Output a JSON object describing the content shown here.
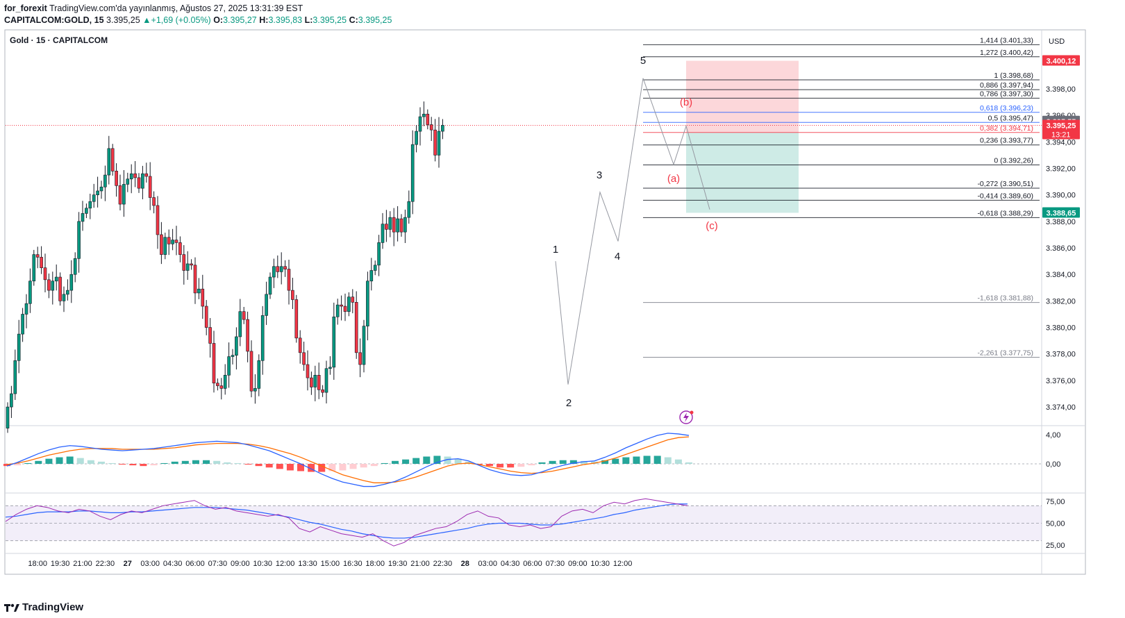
{
  "header": {
    "publisher": "for_forexit",
    "published_text": "TradingView.com'da yayınlanmış, Ağustos 27, 2025 13:31:39 EST",
    "symbol": "CAPITALCOM:GOLD, 15",
    "last": "3.395,25",
    "change": "+1,69 (+0.05%)",
    "o_label": "O:",
    "o_value": "3.395,27",
    "h_label": "H:",
    "h_value": "3.395,83",
    "l_label": "L:",
    "l_value": "3.395,25",
    "c_label": "C:",
    "c_value": "3.395,25"
  },
  "legend_title": "Gold · 15 · CAPITALCOM",
  "currency": "USD",
  "footer_brand": "TradingView",
  "chart_data": {
    "type": "candlestick",
    "ylim": [
      3372.8,
      3402.4
    ],
    "price_ticks": [
      3374,
      3376,
      3378,
      3380,
      3382,
      3384,
      3386,
      3388,
      3390,
      3392,
      3394,
      3396,
      3398
    ],
    "price_tick_labels": [
      "3.374,00",
      "3.376,00",
      "3.378,00",
      "3.380,00",
      "3.382,00",
      "3.384,00",
      "3.386,00",
      "3.388,00",
      "3.390,00",
      "3.392,00",
      "3.394,00",
      "3.396,00",
      "3.398,00"
    ],
    "x_ticks": [
      {
        "label": "18:00",
        "bar": 8
      },
      {
        "label": "19:30",
        "bar": 14
      },
      {
        "label": "21:00",
        "bar": 20
      },
      {
        "label": "22:30",
        "bar": 26
      },
      {
        "label": "27",
        "bar": 32,
        "bold": true
      },
      {
        "label": "03:00",
        "bar": 38
      },
      {
        "label": "04:30",
        "bar": 44
      },
      {
        "label": "06:00",
        "bar": 50
      },
      {
        "label": "07:30",
        "bar": 56
      },
      {
        "label": "09:00",
        "bar": 62
      },
      {
        "label": "10:30",
        "bar": 68
      },
      {
        "label": "12:00",
        "bar": 74
      },
      {
        "label": "13:30",
        "bar": 80
      },
      {
        "label": "15:00",
        "bar": 86
      },
      {
        "label": "16:30",
        "bar": 92
      },
      {
        "label": "18:00",
        "bar": 98
      },
      {
        "label": "19:30",
        "bar": 104
      },
      {
        "label": "21:00",
        "bar": 110
      },
      {
        "label": "22:30",
        "bar": 116
      },
      {
        "label": "28",
        "bar": 122,
        "bold": true
      },
      {
        "label": "03:00",
        "bar": 128
      },
      {
        "label": "04:30",
        "bar": 134
      },
      {
        "label": "06:00",
        "bar": 140
      },
      {
        "label": "07:30",
        "bar": 146
      },
      {
        "label": "09:00",
        "bar": 152
      },
      {
        "label": "10:30",
        "bar": 158
      },
      {
        "label": "12:00",
        "bar": 164
      }
    ],
    "closes": [
      3374,
      3375,
      3377.5,
      3379.5,
      3381,
      3381.8,
      3383.5,
      3385.5,
      3385.3,
      3384.5,
      3383.6,
      3382.8,
      3383.5,
      3383.8,
      3382,
      3382.5,
      3382.8,
      3384,
      3385.2,
      3388,
      3388.6,
      3389,
      3389.5,
      3390,
      3390.3,
      3390.6,
      3391.5,
      3393.5,
      3391.8,
      3390.7,
      3389.3,
      3390.8,
      3391.2,
      3391.6,
      3391.3,
      3390.5,
      3391.6,
      3391.4,
      3389.8,
      3389.2,
      3387,
      3385.5,
      3386.8,
      3386.3,
      3386.6,
      3386.4,
      3385.5,
      3384.3,
      3384.8,
      3384.7,
      3382.6,
      3382.9,
      3381.6,
      3380,
      3378.8,
      3375.8,
      3375.6,
      3375.4,
      3376.4,
      3377.8,
      3377.9,
      3379.3,
      3381.2,
      3380.6,
      3378.2,
      3375.2,
      3375.4,
      3377.5,
      3380.9,
      3382.5,
      3383.8,
      3384.6,
      3384.2,
      3384.6,
      3384.4,
      3382.8,
      3382.1,
      3379.2,
      3378.1,
      3377.2,
      3376.2,
      3375.5,
      3376.4,
      3375.3,
      3375.1,
      3376.9,
      3377,
      3380.8,
      3381.7,
      3381.6,
      3381.2,
      3382.3,
      3381.9,
      3378.1,
      3377.2,
      3380.1,
      3383.5,
      3384.3,
      3384.7,
      3386.4,
      3387.8,
      3387.4,
      3388.3,
      3387.2,
      3388.2,
      3387.2,
      3388.3,
      3389.5,
      3393.8,
      3394.8,
      3395.9,
      3396.1,
      3395.3,
      3394.9,
      3393,
      3394.8,
      3395.25
    ],
    "wave_labels": [
      {
        "text": "1",
        "color": "#131722"
      },
      {
        "text": "2",
        "color": "#131722"
      },
      {
        "text": "3",
        "color": "#131722"
      },
      {
        "text": "4",
        "color": "#131722"
      },
      {
        "text": "5",
        "color": "#131722"
      },
      {
        "text": "(a)",
        "color": "#f23645"
      },
      {
        "text": "(b)",
        "color": "#f23645"
      },
      {
        "text": "(c)",
        "color": "#f23645"
      }
    ],
    "fib_levels": [
      {
        "label": "1,414 (3.401,33)",
        "price": 3401.33,
        "color": "#131722",
        "text": "#131722"
      },
      {
        "label": "1,272 (3.400,42)",
        "price": 3400.42,
        "color": "#131722",
        "text": "#131722"
      },
      {
        "label": "1 (3.398,68)",
        "price": 3398.68,
        "color": "#131722",
        "text": "#131722"
      },
      {
        "label": "0,886 (3.397,94)",
        "price": 3397.94,
        "color": "#131722",
        "text": "#131722"
      },
      {
        "label": "0,786 (3.397,30)",
        "price": 3397.3,
        "color": "#131722",
        "text": "#131722"
      },
      {
        "label": "0,618 (3.396,23)",
        "price": 3396.23,
        "color": "#2962ff",
        "text": "#2962ff"
      },
      {
        "label": "0,5 (3.395,47)",
        "price": 3395.47,
        "color": "#2962ff",
        "text": "#131722"
      },
      {
        "label": "0,382 (3.394,71)",
        "price": 3394.71,
        "color": "#f23645",
        "text": "#f23645"
      },
      {
        "label": "0,236 (3.393,77)",
        "price": 3393.77,
        "color": "#131722",
        "text": "#131722"
      },
      {
        "label": "0 (3.392,26)",
        "price": 3392.26,
        "color": "#131722",
        "text": "#131722"
      },
      {
        "label": "-0,272 (3.390,51)",
        "price": 3390.51,
        "color": "#131722",
        "text": "#131722"
      },
      {
        "label": "-0,414 (3.389,60)",
        "price": 3389.6,
        "color": "#131722",
        "text": "#131722"
      },
      {
        "label": "-0,618 (3.388,29)",
        "price": 3388.29,
        "color": "#131722",
        "text": "#131722"
      },
      {
        "label": "-1,618 (3.381,88)",
        "price": 3381.88,
        "color": "#787b86",
        "text": "#787b86"
      },
      {
        "label": "-2,261 (3.377,75)",
        "price": 3377.75,
        "color": "#787b86",
        "text": "#787b86"
      }
    ],
    "position": {
      "entry": 3394.7,
      "stop": 3400.12,
      "target": 3388.65
    },
    "price_badges": [
      {
        "text": "3.400,12",
        "price": 3400.12,
        "bg": "#f23645"
      },
      {
        "text": "3.395,55",
        "price": 3395.55,
        "bg": "#6a6d78"
      },
      {
        "text": "3.395,25",
        "sub": "13:21",
        "price": 3395.25,
        "bg": "#f23645"
      },
      {
        "text": "3.388,65",
        "price": 3388.65,
        "bg": "#089981"
      }
    ],
    "macd": {
      "ticks": [
        {
          "label": "4,00",
          "value": 4
        },
        {
          "label": "0,00",
          "value": 0
        }
      ],
      "macd_line": [
        -0.3,
        0.2,
        0.8,
        1.4,
        1.9,
        2.3,
        2.5,
        2.4,
        2.2,
        2,
        1.9,
        1.8,
        1.9,
        2,
        2.1,
        2.3,
        2.5,
        2.7,
        2.9,
        3,
        3.1,
        3,
        2.9,
        2.6,
        2.2,
        1.8,
        1.2,
        0.6,
        0,
        -0.7,
        -1.4,
        -2,
        -2.5,
        -2.8,
        -3.1,
        -3.1,
        -2.8,
        -2.4,
        -1.8,
        -1.1,
        -0.4,
        0.2,
        0.6,
        0.7,
        0.4,
        -0.2,
        -0.8,
        -1.2,
        -1.5,
        -1.6,
        -1.5,
        -1.1,
        -0.6,
        -0.2,
        0.1,
        0.3,
        0.4,
        0.9,
        1.5,
        2.2,
        2.8,
        3.4,
        3.9,
        4.2,
        4.1,
        3.9
      ],
      "signal_line": [
        -0.1,
        0.1,
        0.4,
        0.8,
        1.2,
        1.5,
        1.8,
        2,
        2.1,
        2.1,
        2.1,
        2,
        2,
        2,
        2,
        2.1,
        2.2,
        2.4,
        2.6,
        2.7,
        2.8,
        2.8,
        2.8,
        2.7,
        2.5,
        2.2,
        1.8,
        1.4,
        0.9,
        0.3,
        -0.3,
        -0.9,
        -1.5,
        -1.9,
        -2.3,
        -2.6,
        -2.6,
        -2.5,
        -2.2,
        -1.8,
        -1.3,
        -0.8,
        -0.3,
        0,
        0.1,
        -0.1,
        -0.4,
        -0.7,
        -1,
        -1.2,
        -1.3,
        -1.2,
        -1,
        -0.7,
        -0.4,
        -0.1,
        0.1,
        0.4,
        0.8,
        1.3,
        1.8,
        2.3,
        2.8,
        3.3,
        3.6,
        3.7
      ],
      "histogram": [
        -0.3,
        -0.2,
        0.1,
        0.4,
        0.7,
        0.9,
        1,
        0.8,
        0.5,
        0.3,
        0.1,
        -0.1,
        -0.2,
        -0.3,
        -0.2,
        0.1,
        0.3,
        0.4,
        0.5,
        0.5,
        0.4,
        0.2,
        0.1,
        -0.1,
        -0.3,
        -0.5,
        -0.7,
        -0.9,
        -1,
        -1.1,
        -1.1,
        -1,
        -0.9,
        -0.7,
        -0.5,
        -0.3,
        0.1,
        0.4,
        0.6,
        0.8,
        1,
        1.1,
        1,
        0.7,
        0.3,
        -0.1,
        -0.3,
        -0.5,
        -0.5,
        -0.4,
        -0.2,
        0.2,
        0.4,
        0.5,
        0.5,
        0.4,
        0.3,
        0.5,
        0.7,
        0.9,
        1,
        1.1,
        1.1,
        0.9,
        0.6,
        0.2
      ]
    },
    "rsi": {
      "ticks": [
        {
          "label": "75,00",
          "value": 75
        },
        {
          "label": "50,00",
          "value": 50
        },
        {
          "label": "25,00",
          "value": 25
        }
      ],
      "band": [
        30,
        70
      ],
      "rsi_line": [
        52,
        60,
        66,
        70,
        68,
        64,
        62,
        66,
        64,
        58,
        54,
        60,
        64,
        62,
        66,
        70,
        72,
        74,
        76,
        70,
        66,
        68,
        64,
        62,
        60,
        58,
        60,
        56,
        44,
        40,
        46,
        42,
        38,
        36,
        34,
        38,
        30,
        24,
        28,
        36,
        40,
        44,
        46,
        52,
        60,
        64,
        58,
        56,
        48,
        46,
        48,
        44,
        46,
        58,
        64,
        66,
        62,
        70,
        74,
        72,
        76,
        78,
        76,
        74,
        72,
        70
      ],
      "ma_line": [
        57,
        58,
        60,
        62,
        63,
        63,
        63,
        64,
        64,
        63,
        62,
        62,
        63,
        63,
        64,
        65,
        66,
        67,
        68,
        68,
        68,
        67,
        66,
        65,
        63,
        61,
        59,
        57,
        54,
        51,
        49,
        46,
        43,
        41,
        38,
        36,
        34,
        33,
        33,
        34,
        36,
        38,
        40,
        42,
        44,
        47,
        49,
        50,
        50,
        50,
        49,
        48,
        48,
        49,
        51,
        53,
        55,
        57,
        60,
        62,
        65,
        67,
        69,
        71,
        72,
        72
      ]
    }
  }
}
